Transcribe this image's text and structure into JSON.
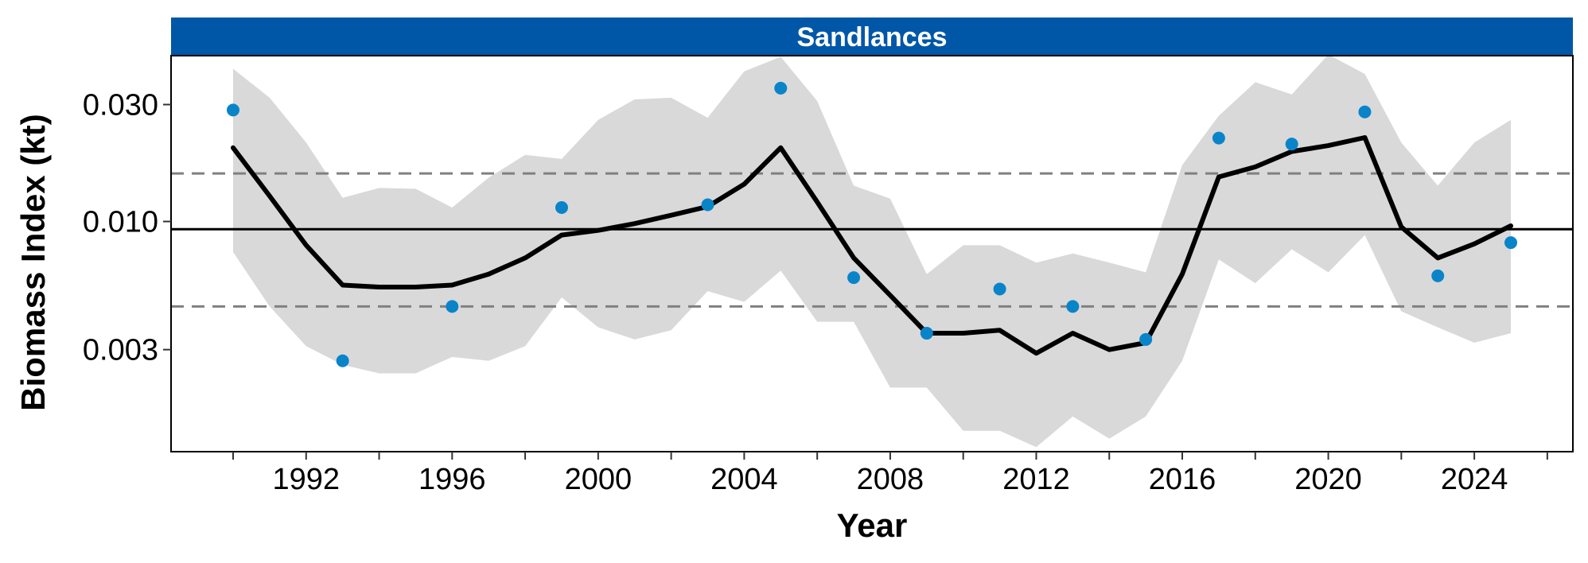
{
  "chart_data": {
    "type": "line",
    "panel_title": "Sandlances",
    "xlabel": "Year",
    "ylabel": "Biomass Index (kt)",
    "y_scale": "log10",
    "ylim": [
      0.00115,
      0.0475
    ],
    "xlim": [
      1988.3,
      2026.7
    ],
    "x_ticks": [
      1992,
      1996,
      2000,
      2004,
      2008,
      2012,
      2016,
      2020,
      2024
    ],
    "x_minor_ticks": [
      1990,
      1994,
      1998,
      2002,
      2006,
      2010,
      2014,
      2018,
      2022,
      2026
    ],
    "y_ticks": [
      0.003,
      0.01,
      0.03
    ],
    "y_tick_labels": [
      "0.003",
      "0.010",
      "0.030"
    ],
    "reference_lines": {
      "mean": 0.0093,
      "lower": 0.0045,
      "upper": 0.0157
    },
    "series": [
      {
        "kind": "observed_points",
        "x": [
          1990,
          1993,
          1996,
          1999,
          2003,
          2005,
          2007,
          2009,
          2011,
          2013,
          2015,
          2017,
          2019,
          2021,
          2023,
          2025
        ],
        "y": [
          0.0285,
          0.0027,
          0.0045,
          0.0114,
          0.0117,
          0.035,
          0.0059,
          0.0035,
          0.0053,
          0.0045,
          0.0033,
          0.0219,
          0.0207,
          0.028,
          0.006,
          0.0082
        ]
      },
      {
        "kind": "fitted_line",
        "x": [
          1990,
          1991,
          1992,
          1993,
          1994,
          1995,
          1996,
          1997,
          1998,
          1999,
          2000,
          2001,
          2002,
          2003,
          2004,
          2005,
          2006,
          2007,
          2008,
          2009,
          2010,
          2011,
          2012,
          2013,
          2014,
          2015,
          2016,
          2017,
          2018,
          2019,
          2020,
          2021,
          2022,
          2023,
          2024,
          2025
        ],
        "y": [
          0.02,
          0.0127,
          0.008,
          0.0055,
          0.0054,
          0.0054,
          0.0055,
          0.0061,
          0.0071,
          0.0088,
          0.0092,
          0.0098,
          0.0106,
          0.0115,
          0.0142,
          0.02,
          0.012,
          0.0071,
          0.005,
          0.0035,
          0.0035,
          0.0036,
          0.0029,
          0.0035,
          0.003,
          0.0032,
          0.0061,
          0.0152,
          0.0167,
          0.0193,
          0.0204,
          0.022,
          0.0095,
          0.0071,
          0.0081,
          0.0096
        ]
      },
      {
        "kind": "confidence_band",
        "x": [
          1990,
          1991,
          1992,
          1993,
          1994,
          1995,
          1996,
          1997,
          1998,
          1999,
          2000,
          2001,
          2002,
          2003,
          2004,
          2005,
          2006,
          2007,
          2008,
          2009,
          2010,
          2011,
          2012,
          2013,
          2014,
          2015,
          2016,
          2017,
          2018,
          2019,
          2020,
          2021,
          2022,
          2023,
          2024,
          2025
        ],
        "upper": [
          0.042,
          0.032,
          0.021,
          0.0125,
          0.0137,
          0.0136,
          0.0114,
          0.0151,
          0.0187,
          0.018,
          0.026,
          0.0315,
          0.032,
          0.0265,
          0.041,
          0.047,
          0.031,
          0.014,
          0.0124,
          0.0061,
          0.008,
          0.008,
          0.0068,
          0.0074,
          0.0068,
          0.0062,
          0.017,
          0.027,
          0.037,
          0.033,
          0.048,
          0.04,
          0.021,
          0.014,
          0.021,
          0.026
        ],
        "lower": [
          0.0075,
          0.0045,
          0.0031,
          0.0026,
          0.0024,
          0.0024,
          0.0028,
          0.0027,
          0.0031,
          0.0049,
          0.0037,
          0.0033,
          0.0036,
          0.0052,
          0.0047,
          0.0063,
          0.0039,
          0.0039,
          0.0021,
          0.0021,
          0.0014,
          0.0014,
          0.0012,
          0.0016,
          0.0013,
          0.0016,
          0.0027,
          0.007,
          0.0056,
          0.0077,
          0.0062,
          0.0088,
          0.0043,
          0.0037,
          0.0032,
          0.0035
        ]
      }
    ],
    "colors": {
      "strip_background": "#0057A8",
      "points": "#0A84C9",
      "band": "#D9D9D9",
      "line": "#000000",
      "dashed_line": "#808080"
    }
  }
}
